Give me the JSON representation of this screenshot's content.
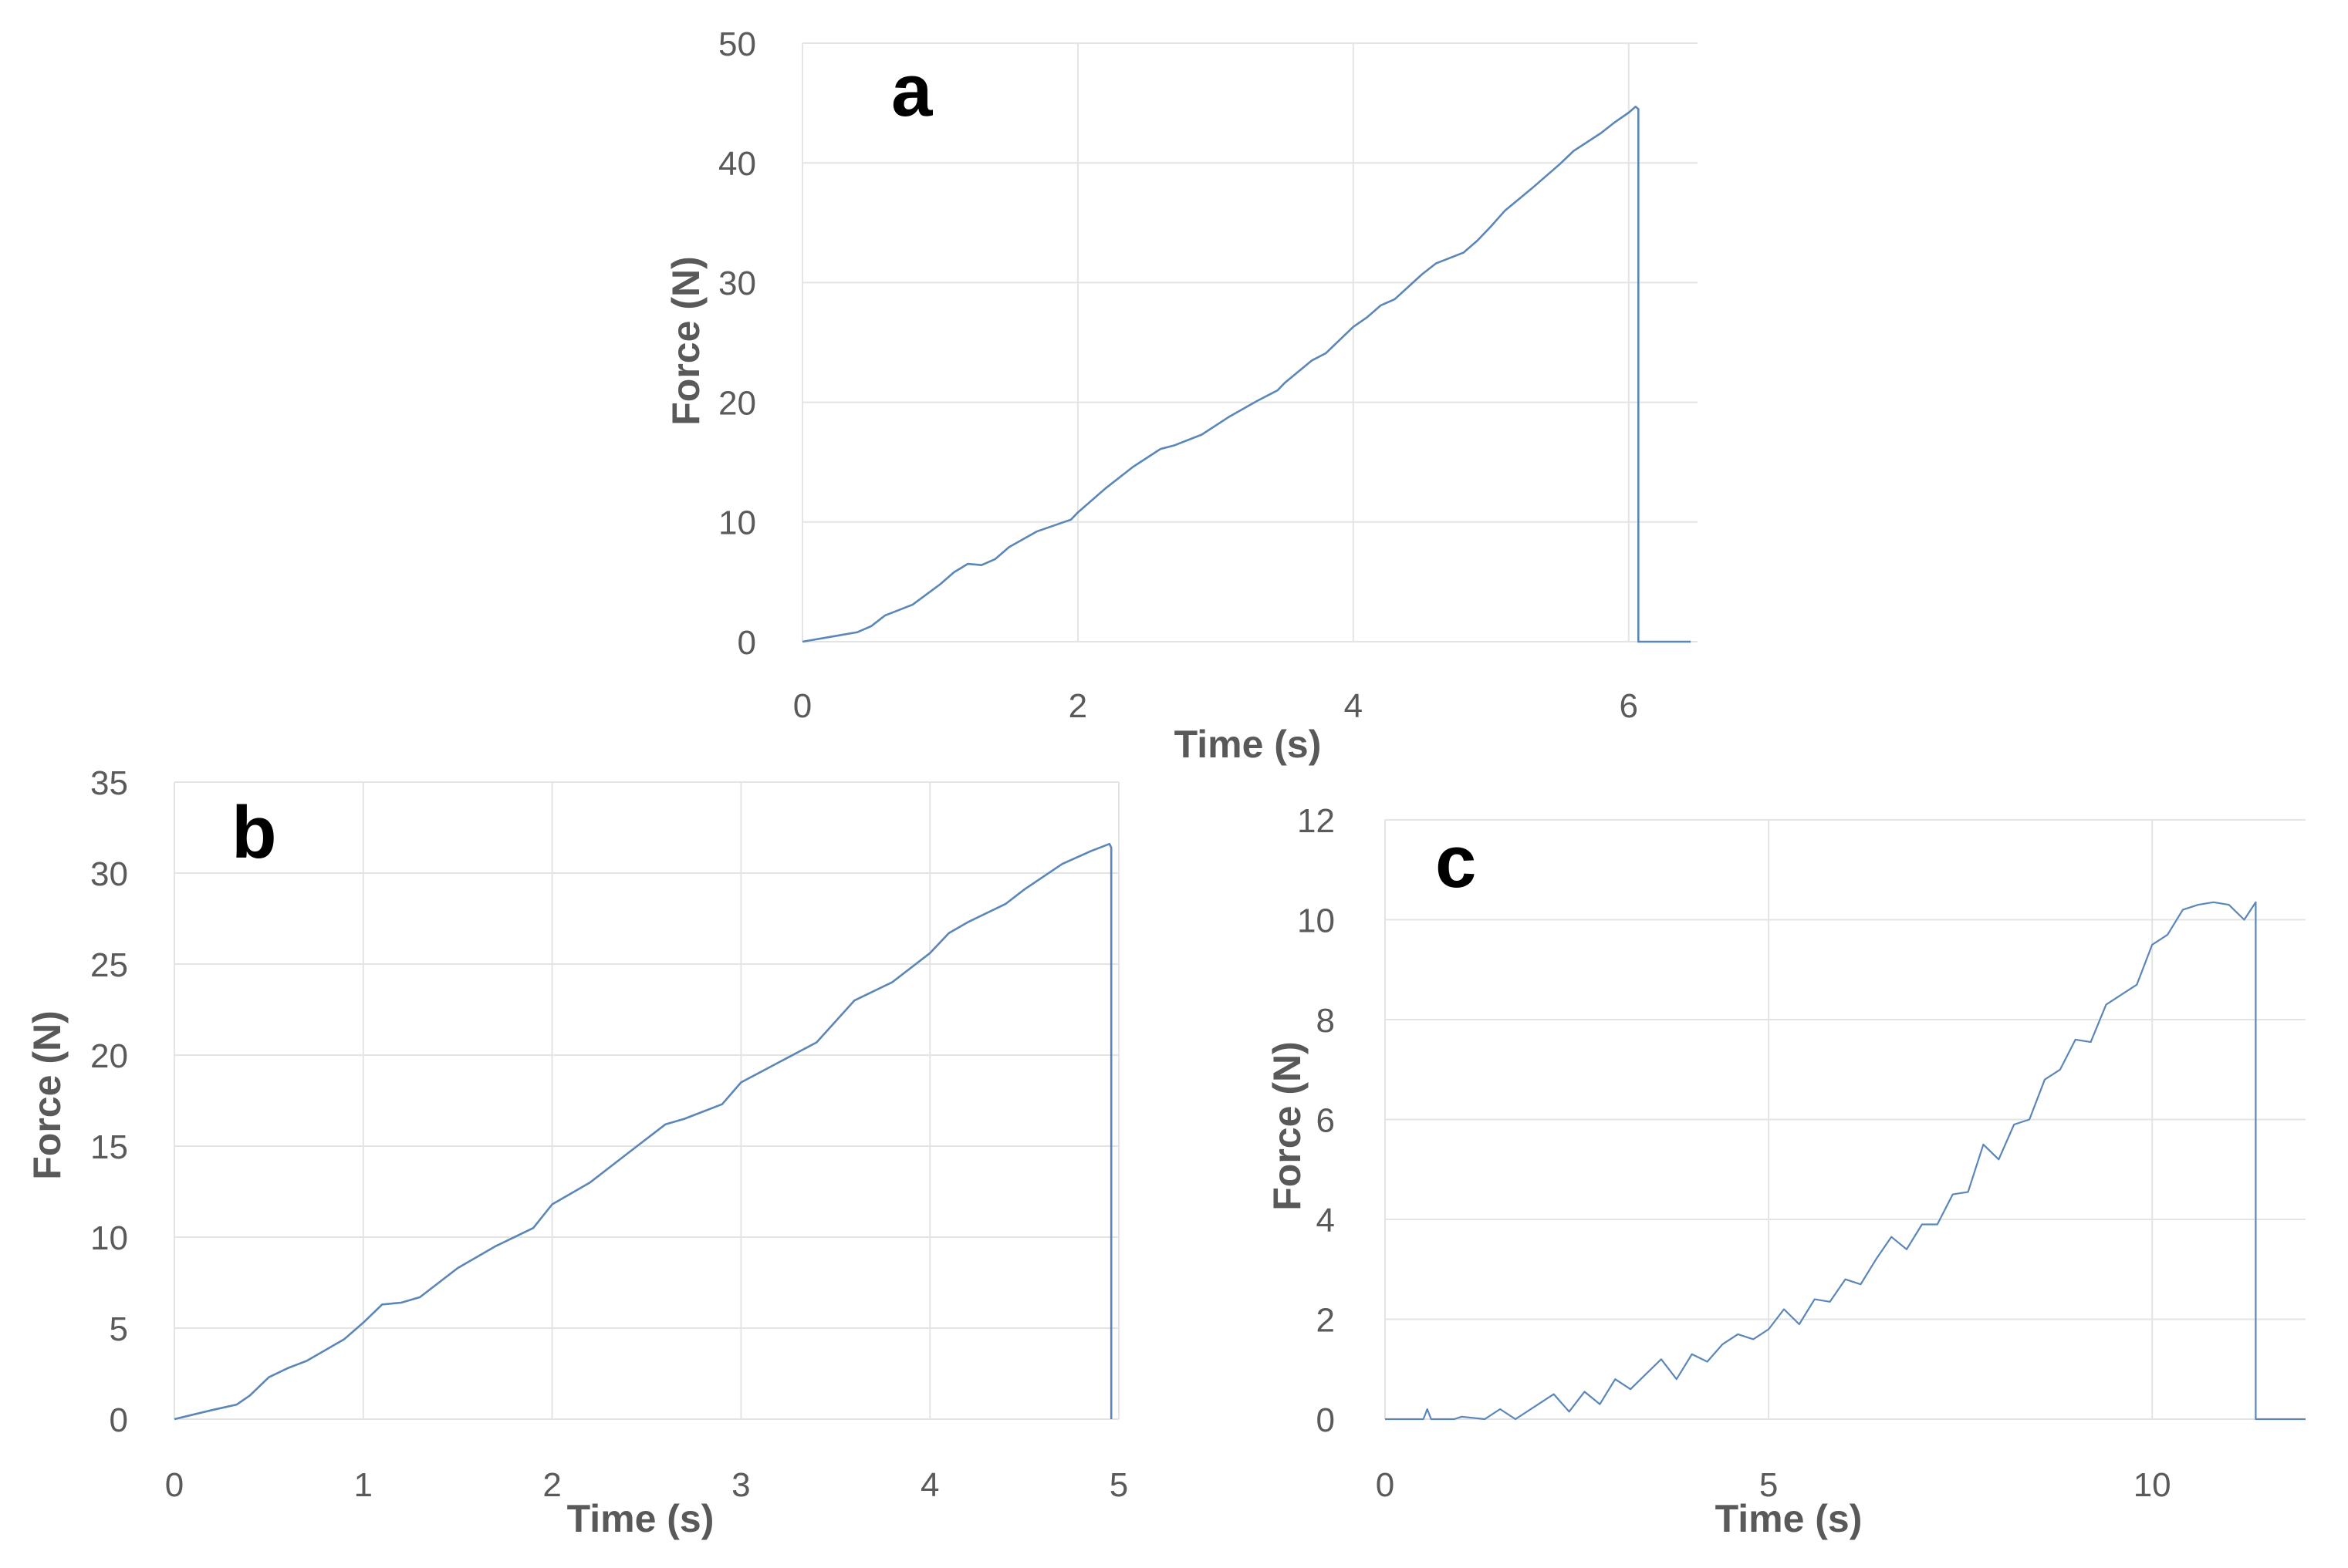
{
  "colors": {
    "line": "#5b86b8",
    "grid": "#e4e4e4",
    "tick_text": "#5a5a5a",
    "axis_label": "#595959",
    "panel_label": "#000000"
  },
  "chart_data": [
    {
      "panel": "a",
      "type": "line",
      "xlabel": "Time (s)",
      "ylabel": "Force (N)",
      "xlim": [
        0,
        6.5
      ],
      "ylim": [
        0,
        50
      ],
      "xticks": [
        0,
        2,
        4,
        6
      ],
      "yticks": [
        0,
        10,
        20,
        30,
        40,
        50
      ],
      "series": [
        {
          "name": "a",
          "x": [
            0,
            0.2,
            0.4,
            0.5,
            0.6,
            0.8,
            1.0,
            1.1,
            1.2,
            1.3,
            1.4,
            1.5,
            1.7,
            1.95,
            2.0,
            2.2,
            2.4,
            2.6,
            2.7,
            2.9,
            3.1,
            3.3,
            3.45,
            3.5,
            3.7,
            3.8,
            3.9,
            4.0,
            4.1,
            4.2,
            4.3,
            4.5,
            4.6,
            4.8,
            4.9,
            5.0,
            5.1,
            5.3,
            5.5,
            5.6,
            5.8,
            5.9,
            6.0,
            6.05,
            6.07,
            6.07,
            6.15,
            6.45
          ],
          "y": [
            0,
            0.4,
            0.8,
            1.3,
            2.2,
            3.1,
            4.8,
            5.8,
            6.5,
            6.4,
            6.9,
            7.9,
            9.2,
            10.2,
            10.8,
            12.8,
            14.6,
            16.1,
            16.4,
            17.3,
            18.8,
            20.1,
            21.0,
            21.6,
            23.5,
            24.1,
            25.2,
            26.3,
            27.1,
            28.1,
            28.6,
            30.7,
            31.6,
            32.5,
            33.5,
            34.7,
            36.0,
            37.9,
            39.9,
            41.0,
            42.5,
            43.4,
            44.2,
            44.7,
            44.5,
            0,
            0,
            0
          ]
        }
      ]
    },
    {
      "panel": "b",
      "type": "line",
      "xlabel": "Time (s)",
      "ylabel": "Force (N)",
      "xlim": [
        0,
        5
      ],
      "ylim": [
        0,
        35
      ],
      "xticks": [
        0,
        1,
        2,
        3,
        4,
        5
      ],
      "yticks": [
        0,
        5,
        10,
        15,
        20,
        25,
        30,
        35
      ],
      "series": [
        {
          "name": "b",
          "x": [
            0,
            0.2,
            0.33,
            0.4,
            0.5,
            0.6,
            0.7,
            0.9,
            1.0,
            1.1,
            1.2,
            1.3,
            1.5,
            1.7,
            1.9,
            2.0,
            2.2,
            2.4,
            2.6,
            2.7,
            2.9,
            3.0,
            3.2,
            3.4,
            3.6,
            3.8,
            4.0,
            4.1,
            4.2,
            4.4,
            4.5,
            4.7,
            4.85,
            4.95,
            4.96,
            4.96
          ],
          "y": [
            0,
            0.5,
            0.8,
            1.3,
            2.3,
            2.8,
            3.2,
            4.4,
            5.3,
            6.3,
            6.4,
            6.7,
            8.3,
            9.5,
            10.5,
            11.8,
            13.0,
            14.6,
            16.2,
            16.5,
            17.3,
            18.5,
            19.6,
            20.7,
            23.0,
            24.0,
            25.6,
            26.7,
            27.3,
            28.3,
            29.1,
            30.5,
            31.2,
            31.6,
            31.4,
            0
          ]
        }
      ]
    },
    {
      "panel": "c",
      "type": "line",
      "xlabel": "Time (s)",
      "ylabel": "Force (N)",
      "xlim": [
        0,
        12
      ],
      "ylim": [
        0,
        12
      ],
      "xticks": [
        0,
        5,
        10
      ],
      "yticks": [
        0,
        2,
        4,
        6,
        8,
        10,
        12
      ],
      "series": [
        {
          "name": "c",
          "x": [
            0,
            0.5,
            0.55,
            0.6,
            0.9,
            1.0,
            1.3,
            1.5,
            1.7,
            1.8,
            2.0,
            2.2,
            2.4,
            2.6,
            2.8,
            3.0,
            3.2,
            3.4,
            3.6,
            3.8,
            4.0,
            4.2,
            4.4,
            4.6,
            4.8,
            5.0,
            5.2,
            5.4,
            5.6,
            5.8,
            6.0,
            6.2,
            6.4,
            6.6,
            6.8,
            7.0,
            7.2,
            7.4,
            7.6,
            7.8,
            8.0,
            8.2,
            8.4,
            8.6,
            8.8,
            9.0,
            9.2,
            9.4,
            9.6,
            9.8,
            10.0,
            10.2,
            10.4,
            10.6,
            10.8,
            11.0,
            11.2,
            11.35,
            11.35,
            11.5,
            12.0
          ],
          "y": [
            0,
            0,
            0.2,
            0,
            0,
            0.05,
            0,
            0.2,
            0,
            0.1,
            0.3,
            0.5,
            0.15,
            0.55,
            0.3,
            0.8,
            0.6,
            0.9,
            1.2,
            0.8,
            1.3,
            1.15,
            1.5,
            1.7,
            1.6,
            1.8,
            2.2,
            1.9,
            2.4,
            2.35,
            2.8,
            2.7,
            3.2,
            3.65,
            3.4,
            3.9,
            3.9,
            4.5,
            4.55,
            5.5,
            5.2,
            5.9,
            6.0,
            6.8,
            7.0,
            7.6,
            7.55,
            8.3,
            8.5,
            8.7,
            9.5,
            9.7,
            10.2,
            10.3,
            10.35,
            10.3,
            10.0,
            10.35,
            0,
            0,
            0
          ]
        }
      ]
    }
  ]
}
